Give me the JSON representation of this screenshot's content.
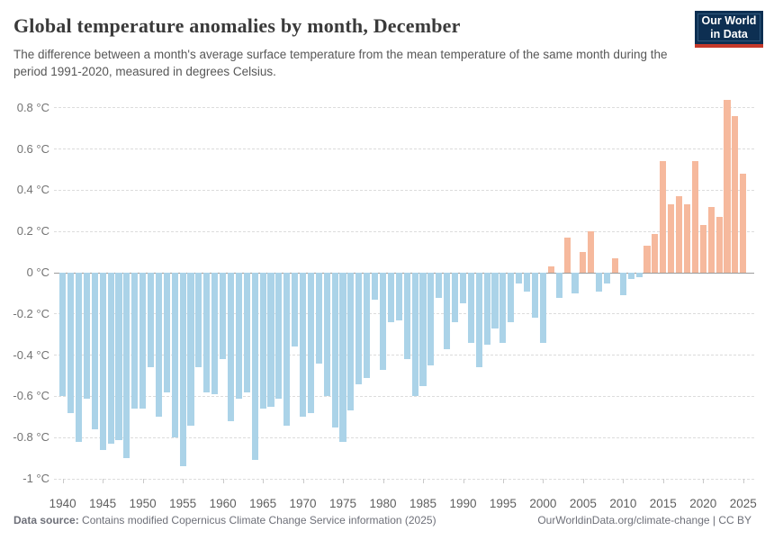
{
  "header": {
    "title": "Global temperature anomalies by month, December",
    "subtitle": "The difference between a month's average surface temperature from the mean temperature of the same month during the period 1991-2020, measured in degrees Celsius.",
    "logo": {
      "line1": "Our World",
      "line2": "in Data"
    }
  },
  "footer": {
    "source_label": "Data source:",
    "source_text": "Contains modified Copernicus Climate Change Service information (2025)",
    "right_text": "OurWorldinData.org/climate-change | CC BY"
  },
  "chart_data": {
    "type": "bar",
    "title": "Global temperature anomalies by month, December",
    "unit": "°C",
    "ylim": [
      -1.0,
      0.85
    ],
    "yticks": [
      0.8,
      0.6,
      0.4,
      0.2,
      0,
      -0.2,
      -0.4,
      -0.6,
      -0.8,
      -1
    ],
    "ytick_suffix": " °C",
    "xticks": [
      1940,
      1945,
      1950,
      1955,
      1960,
      1965,
      1970,
      1975,
      1980,
      1985,
      1990,
      1995,
      2000,
      2005,
      2010,
      2015,
      2020,
      2025
    ],
    "grid": "horizontal-dashed",
    "legend": "none",
    "colors": {
      "positive": "#f6b99d",
      "negative": "#abd3e8",
      "zero_axis": "#9b9b9b"
    },
    "x": [
      1940,
      1941,
      1942,
      1943,
      1944,
      1945,
      1946,
      1947,
      1948,
      1949,
      1950,
      1951,
      1952,
      1953,
      1954,
      1955,
      1956,
      1957,
      1958,
      1959,
      1960,
      1961,
      1962,
      1963,
      1964,
      1965,
      1966,
      1967,
      1968,
      1969,
      1970,
      1971,
      1972,
      1973,
      1974,
      1975,
      1976,
      1977,
      1978,
      1979,
      1980,
      1981,
      1982,
      1983,
      1984,
      1985,
      1986,
      1987,
      1988,
      1989,
      1990,
      1991,
      1992,
      1993,
      1994,
      1995,
      1996,
      1997,
      1998,
      1999,
      2000,
      2001,
      2002,
      2003,
      2004,
      2005,
      2006,
      2007,
      2008,
      2009,
      2010,
      2011,
      2012,
      2013,
      2014,
      2015,
      2016,
      2017,
      2018,
      2019,
      2020,
      2021,
      2022,
      2023,
      2024,
      2025
    ],
    "values": [
      -0.6,
      -0.68,
      -0.82,
      -0.61,
      -0.76,
      -0.86,
      -0.83,
      -0.81,
      -0.9,
      -0.66,
      -0.66,
      -0.46,
      -0.7,
      -0.58,
      -0.8,
      -0.94,
      -0.74,
      -0.46,
      -0.58,
      -0.59,
      -0.42,
      -0.72,
      -0.61,
      -0.58,
      -0.91,
      -0.66,
      -0.65,
      -0.61,
      -0.74,
      -0.36,
      -0.7,
      -0.68,
      -0.44,
      -0.6,
      -0.75,
      -0.82,
      -0.67,
      -0.54,
      -0.51,
      -0.13,
      -0.47,
      -0.24,
      -0.23,
      -0.42,
      -0.6,
      -0.55,
      -0.45,
      -0.12,
      -0.37,
      -0.24,
      -0.15,
      -0.34,
      -0.46,
      -0.35,
      -0.27,
      -0.34,
      -0.24,
      -0.05,
      -0.09,
      -0.22,
      -0.34,
      0.03,
      -0.12,
      0.17,
      -0.1,
      0.1,
      0.2,
      -0.09,
      -0.05,
      0.07,
      -0.11,
      -0.03,
      -0.02,
      0.13,
      0.19,
      0.54,
      0.33,
      0.37,
      0.33,
      0.54,
      0.23,
      0.32,
      0.27,
      0.84,
      0.76,
      0.48
    ]
  }
}
